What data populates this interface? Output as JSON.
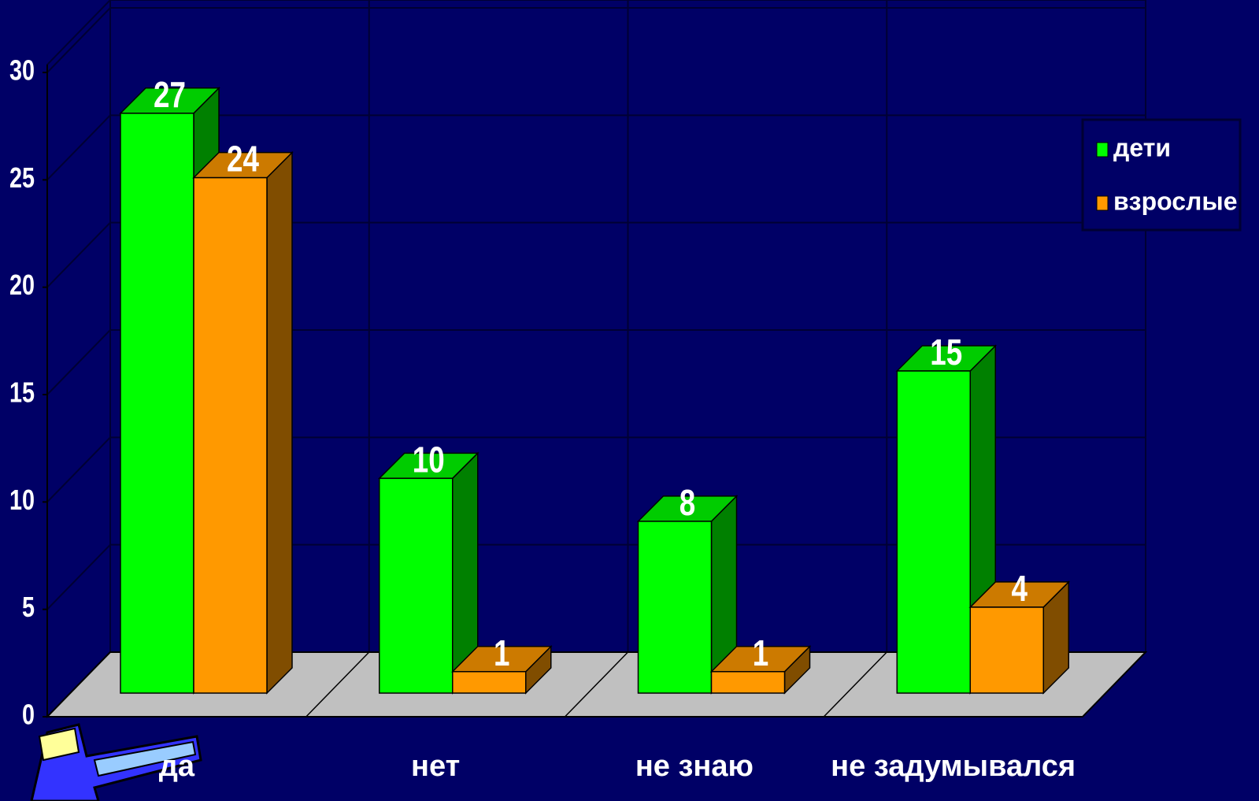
{
  "chart_data": {
    "type": "bar3d",
    "categories": [
      "да",
      "нет",
      "не знаю",
      "не задумывался"
    ],
    "series": [
      {
        "name": "дети",
        "color": "#00ff00",
        "values": [
          27,
          10,
          8,
          15
        ]
      },
      {
        "name": "взрослые",
        "color": "#ff9900",
        "values": [
          24,
          1,
          1,
          4
        ]
      }
    ],
    "ylim": [
      0,
      30
    ],
    "yticks": [
      0,
      5,
      10,
      15,
      20,
      25,
      30
    ],
    "grid": true,
    "legend": "right"
  }
}
